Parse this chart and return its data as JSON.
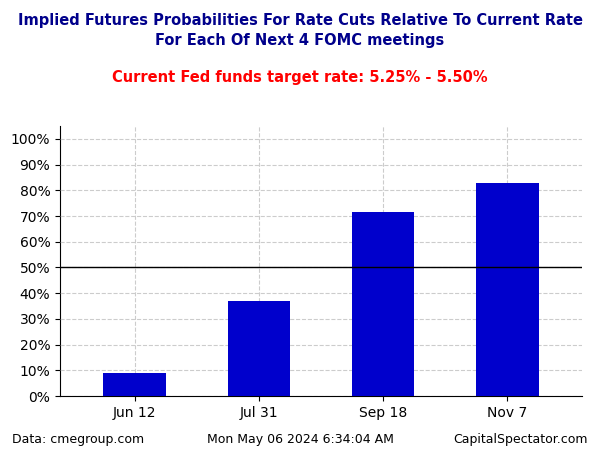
{
  "title_line1": "Implied Futures Probabilities For Rate Cuts Relative To Current Rate",
  "title_line2": "For Each Of Next 4 FOMC meetings",
  "subtitle": "Current Fed funds target rate: 5.25% - 5.50%",
  "categories": [
    "Jun 12",
    "Jul 31",
    "Sep 18",
    "Nov 7"
  ],
  "values": [
    0.09,
    0.37,
    0.715,
    0.83
  ],
  "bar_color": "#0000cc",
  "title_color": "#00008B",
  "subtitle_color": "#ff0000",
  "yticks": [
    0.0,
    0.1,
    0.2,
    0.3,
    0.4,
    0.5,
    0.6,
    0.7,
    0.8,
    0.9,
    1.0
  ],
  "yticklabels": [
    "0%",
    "10%",
    "20%",
    "30%",
    "40%",
    "50%",
    "60%",
    "70%",
    "80%",
    "90%",
    "100%"
  ],
  "ylim": [
    0,
    1.05
  ],
  "hline_y": 0.5,
  "footer_left": "Data: cmegroup.com",
  "footer_center": "Mon May 06 2024 6:34:04 AM",
  "footer_right": "CapitalSpectator.com",
  "grid_color": "#cccccc",
  "background_color": "#ffffff",
  "title_fontsize": 10.5,
  "subtitle_fontsize": 10.5,
  "tick_fontsize": 10,
  "footer_fontsize": 9
}
